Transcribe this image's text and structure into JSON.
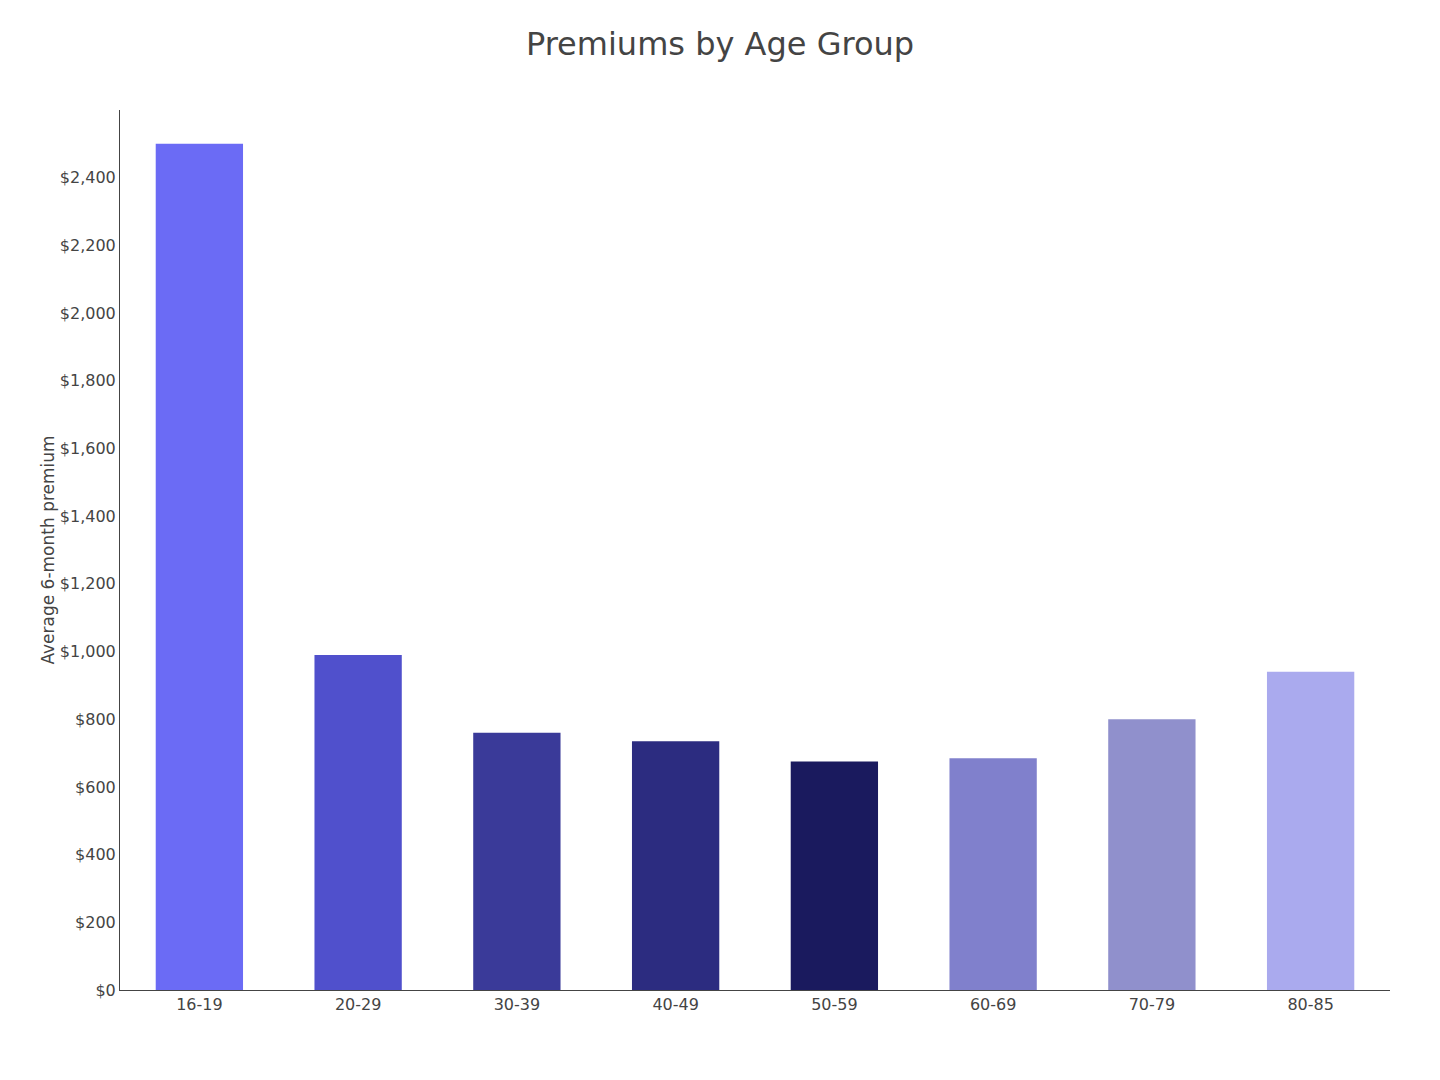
{
  "chart_data": {
    "type": "bar",
    "title": "Premiums by Age Group",
    "ylabel": "Average 6-month premium",
    "categories": [
      "16-19",
      "20-29",
      "30-39",
      "40-49",
      "50-59",
      "60-69",
      "70-79",
      "80-85"
    ],
    "values": [
      2500,
      990,
      760,
      735,
      675,
      685,
      800,
      940
    ],
    "colors": [
      "#6B6BF5",
      "#5050CC",
      "#3A3A99",
      "#2C2C80",
      "#1A1A5E",
      "#8080CC",
      "#9090CC",
      "#AAAAEE"
    ],
    "ylim": [
      0,
      2600
    ],
    "yticks": [
      {
        "value": 0,
        "label": "$0"
      },
      {
        "value": 200,
        "label": "$200"
      },
      {
        "value": 400,
        "label": "$400"
      },
      {
        "value": 600,
        "label": "$600"
      },
      {
        "value": 800,
        "label": "$800"
      },
      {
        "value": 1000,
        "label": "$1,000"
      },
      {
        "value": 1200,
        "label": "$1,200"
      },
      {
        "value": 1400,
        "label": "$1,400"
      },
      {
        "value": 1600,
        "label": "$1,600"
      },
      {
        "value": 1800,
        "label": "$1,800"
      },
      {
        "value": 2000,
        "label": "$2,000"
      },
      {
        "value": 2200,
        "label": "$2,200"
      },
      {
        "value": 2400,
        "label": "$2,400"
      }
    ],
    "grid": false
  }
}
